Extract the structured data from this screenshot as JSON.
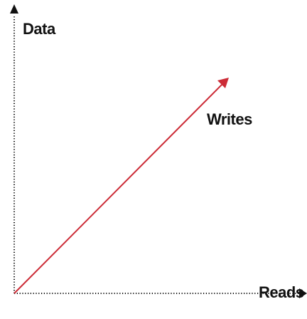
{
  "labels": {
    "y_axis": "Data",
    "x_axis": "Reads",
    "line": "Writes"
  },
  "colors": {
    "axis": "#111111",
    "line": "#cc2b36",
    "background": "#ffffff"
  }
}
